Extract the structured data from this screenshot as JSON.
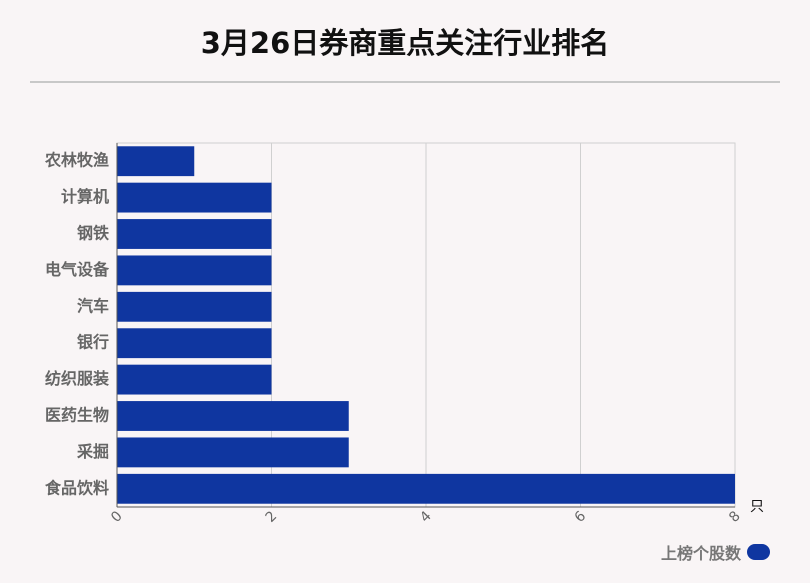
{
  "title": "3月26日券商重点关注行业排名",
  "chart_data": {
    "type": "bar",
    "orientation": "horizontal",
    "categories": [
      "农林牧渔",
      "计算机",
      "钢铁",
      "电气设备",
      "汽车",
      "银行",
      "纺织服装",
      "医药生物",
      "采掘",
      "食品饮料"
    ],
    "series": [
      {
        "name": "上榜个股数",
        "values": [
          1,
          2,
          2,
          2,
          2,
          2,
          2,
          3,
          3,
          8
        ]
      }
    ],
    "xlim": [
      0,
      8
    ],
    "xticks": [
      "0",
      "2",
      "4",
      "6",
      "8"
    ],
    "xunit": "只",
    "grid": true,
    "legend_position": "bottom-right",
    "bar_color": "#0f36a0"
  }
}
